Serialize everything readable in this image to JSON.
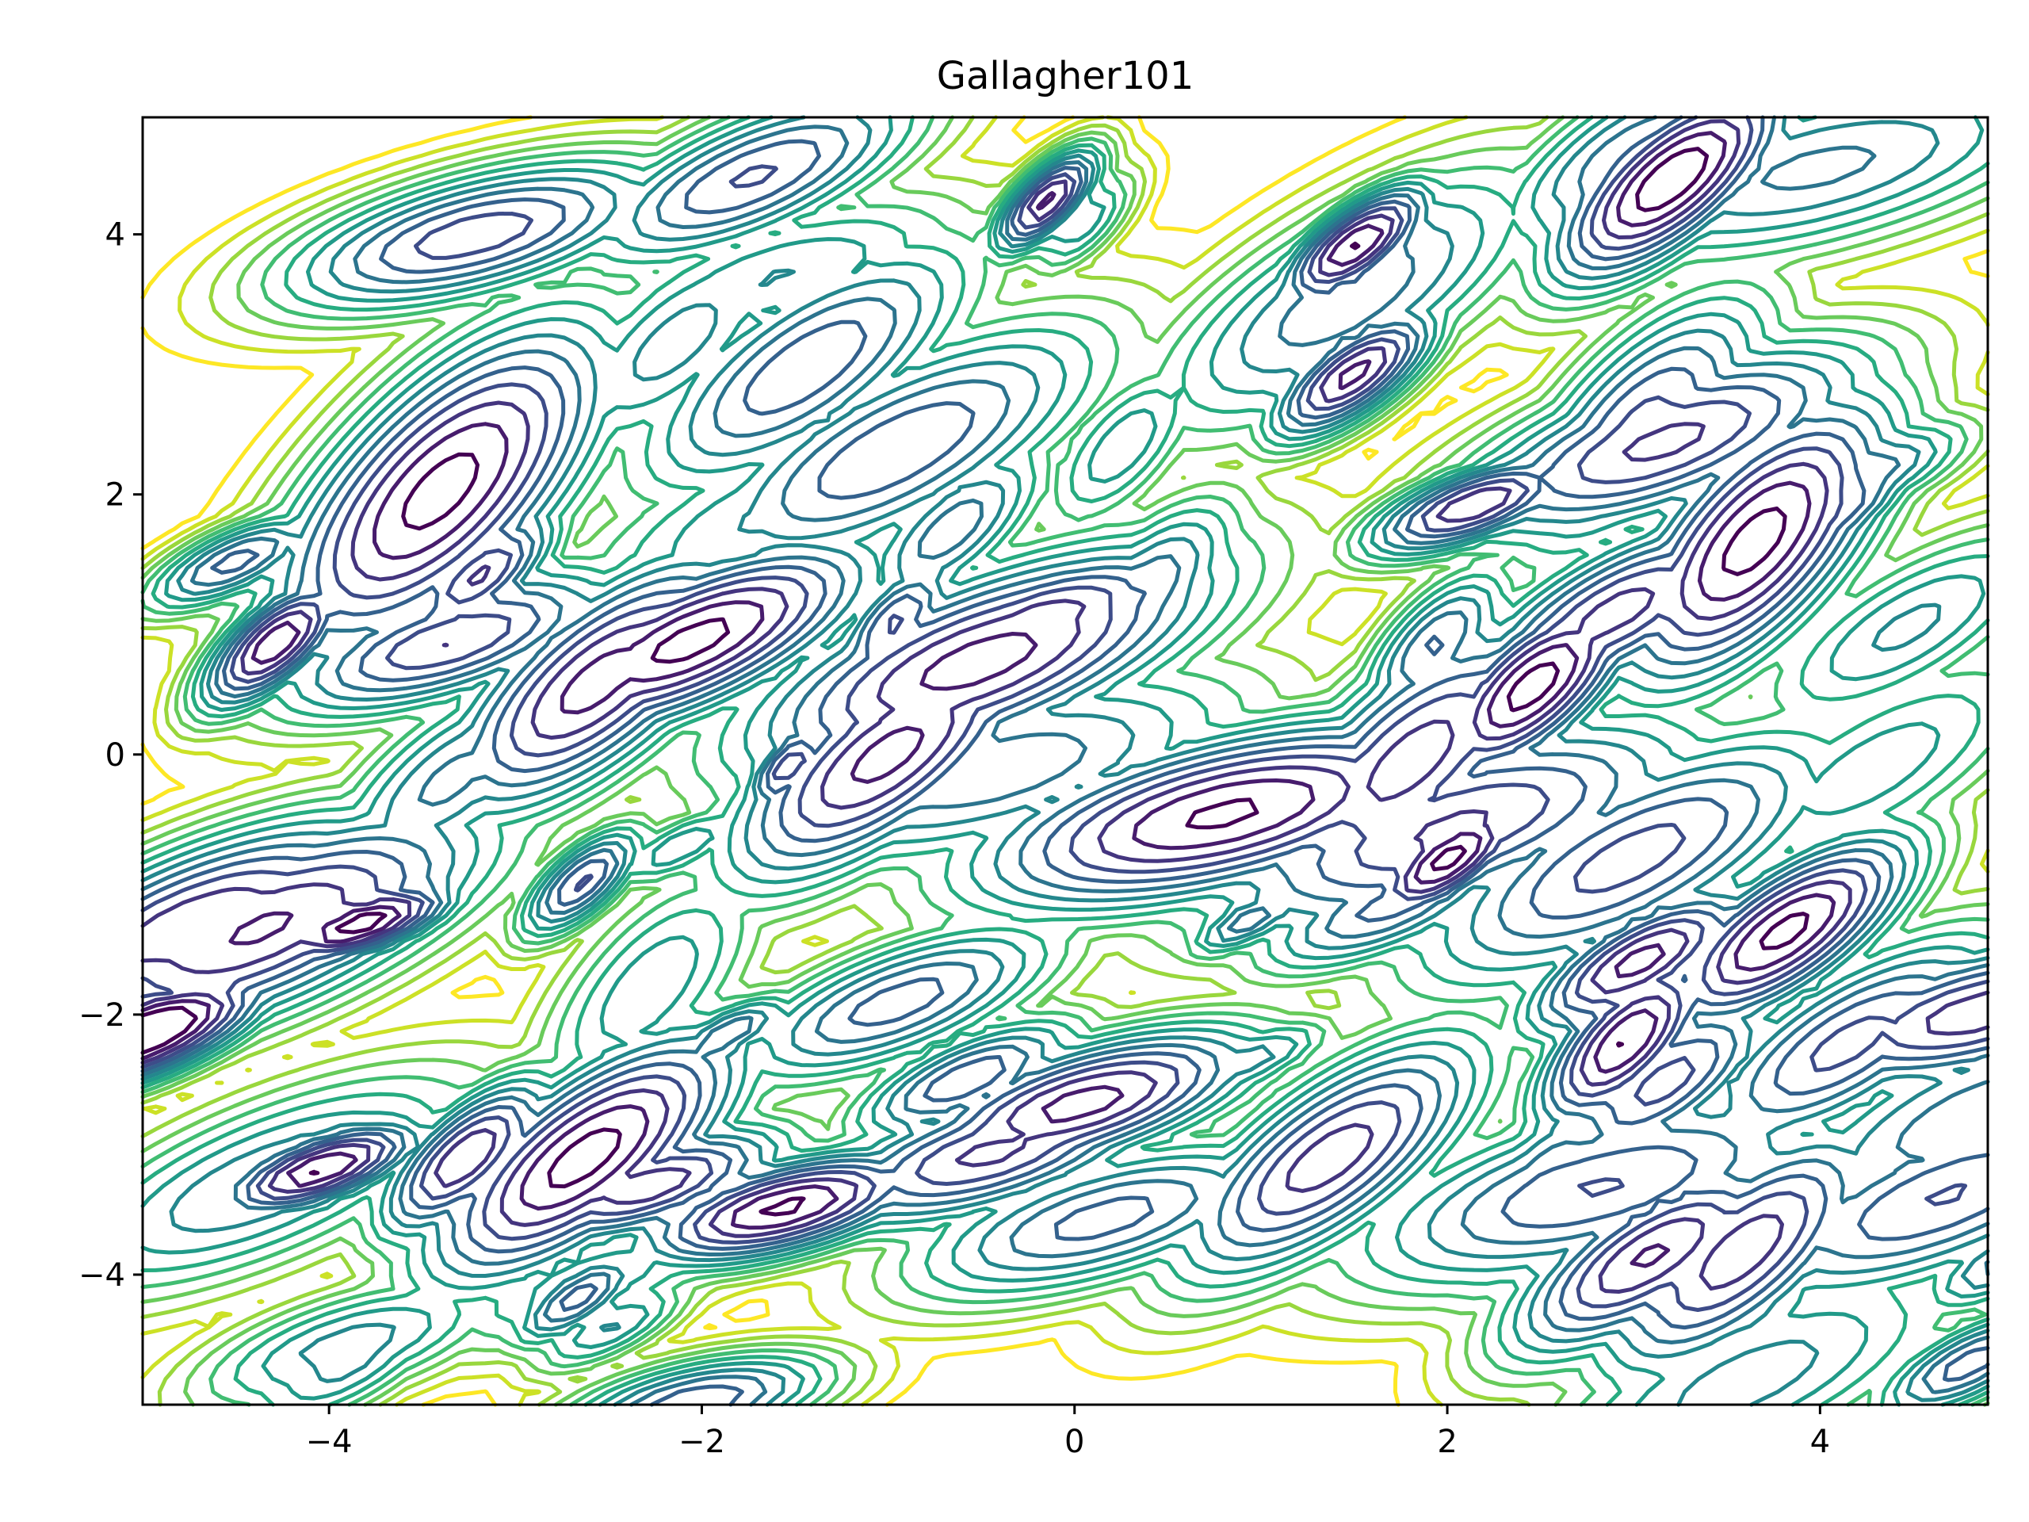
{
  "chart_data": {
    "type": "contour",
    "title": "Gallagher101",
    "xlabel": "",
    "ylabel": "",
    "xlim": [
      -5,
      4.9
    ],
    "ylim": [
      -5,
      4.9
    ],
    "x_ticks": [
      -4,
      -2,
      0,
      2,
      4
    ],
    "y_ticks": [
      -4,
      -2,
      0,
      2,
      4
    ],
    "x_tick_labels": [
      "−4",
      "−2",
      "0",
      "2",
      "4"
    ],
    "y_tick_labels": [
      "−4",
      "−2",
      "0",
      "2",
      "4"
    ],
    "colormap": "viridis",
    "levels": 14,
    "colors": {
      "low": "#440154",
      "mid_low": "#3b528b",
      "mid": "#21918c",
      "mid_high": "#5ec962",
      "high": "#c8e020",
      "axes": "#000000",
      "background": "#ffffff"
    },
    "grid": false,
    "legend": "none"
  }
}
